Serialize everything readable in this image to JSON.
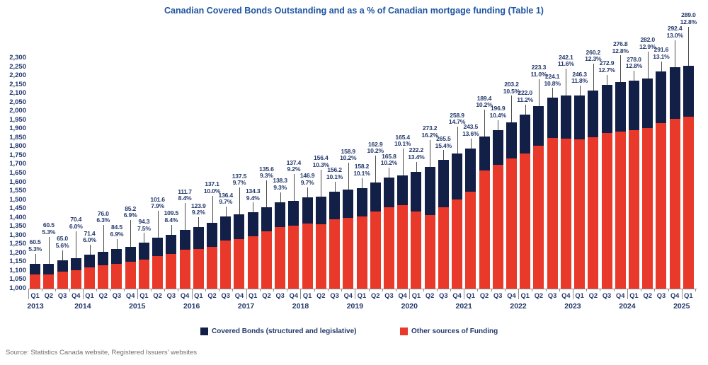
{
  "source": "Source: Statistics Canada website, Registered Issuers' websites",
  "chart_data": {
    "type": "bar",
    "stacked": true,
    "title": "Canadian Covered Bonds Outstanding and as a % of Canadian mortgage funding (Table 1)",
    "ylabel": "",
    "xlabel": "",
    "ylim": [
      1000,
      2300
    ],
    "y_step": 50,
    "grid": false,
    "legend_position": "bottom",
    "label_format": "covered_bonds_value over percent_of_mortgage_funding",
    "series": [
      {
        "name": "Covered Bonds (structured and legislative)",
        "color": "#121f47"
      },
      {
        "name": "Other sources of Funding",
        "color": "#e8392b"
      }
    ],
    "quarters": [
      {
        "year": 2013,
        "quarter": "Q1",
        "covered": 60.5,
        "pct": 5.3
      },
      {
        "year": 2013,
        "quarter": "Q2",
        "covered": 60.5,
        "pct": 5.3
      },
      {
        "year": 2013,
        "quarter": "Q3",
        "covered": 65.0,
        "pct": 5.6
      },
      {
        "year": 2013,
        "quarter": "Q4",
        "covered": 70.4,
        "pct": 6.0
      },
      {
        "year": 2014,
        "quarter": "Q1",
        "covered": 71.4,
        "pct": 6.0
      },
      {
        "year": 2014,
        "quarter": "Q2",
        "covered": 76.0,
        "pct": 6.3
      },
      {
        "year": 2014,
        "quarter": "Q3",
        "covered": 84.5,
        "pct": 6.9
      },
      {
        "year": 2014,
        "quarter": "Q4",
        "covered": 85.2,
        "pct": 6.9
      },
      {
        "year": 2015,
        "quarter": "Q1",
        "covered": 94.3,
        "pct": 7.5
      },
      {
        "year": 2015,
        "quarter": "Q2",
        "covered": 101.6,
        "pct": 7.9
      },
      {
        "year": 2015,
        "quarter": "Q3",
        "covered": 109.5,
        "pct": 8.4
      },
      {
        "year": 2015,
        "quarter": "Q4",
        "covered": 111.7,
        "pct": 8.4
      },
      {
        "year": 2016,
        "quarter": "Q1",
        "covered": 123.9,
        "pct": 9.2
      },
      {
        "year": 2016,
        "quarter": "Q2",
        "covered": 137.1,
        "pct": 10.0
      },
      {
        "year": 2016,
        "quarter": "Q3",
        "covered": 136.4,
        "pct": 9.7
      },
      {
        "year": 2016,
        "quarter": "Q4",
        "covered": 137.5,
        "pct": 9.7
      },
      {
        "year": 2017,
        "quarter": "Q1",
        "covered": 134.3,
        "pct": 9.4
      },
      {
        "year": 2017,
        "quarter": "Q2",
        "covered": 135.6,
        "pct": 9.3
      },
      {
        "year": 2017,
        "quarter": "Q3",
        "covered": 138.3,
        "pct": 9.3
      },
      {
        "year": 2017,
        "quarter": "Q4",
        "covered": 137.4,
        "pct": 9.2
      },
      {
        "year": 2018,
        "quarter": "Q1",
        "covered": 146.9,
        "pct": 9.7
      },
      {
        "year": 2018,
        "quarter": "Q2",
        "covered": 156.4,
        "pct": 10.3
      },
      {
        "year": 2018,
        "quarter": "Q3",
        "covered": 156.2,
        "pct": 10.1
      },
      {
        "year": 2018,
        "quarter": "Q4",
        "covered": 158.9,
        "pct": 10.2
      },
      {
        "year": 2019,
        "quarter": "Q1",
        "covered": 158.2,
        "pct": 10.1
      },
      {
        "year": 2019,
        "quarter": "Q2",
        "covered": 162.9,
        "pct": 10.2
      },
      {
        "year": 2019,
        "quarter": "Q3",
        "covered": 165.8,
        "pct": 10.2
      },
      {
        "year": 2019,
        "quarter": "Q4",
        "covered": 165.4,
        "pct": 10.1
      },
      {
        "year": 2020,
        "quarter": "Q1",
        "covered": 222.2,
        "pct": 13.4
      },
      {
        "year": 2020,
        "quarter": "Q2",
        "covered": 273.2,
        "pct": 16.2
      },
      {
        "year": 2020,
        "quarter": "Q3",
        "covered": 265.5,
        "pct": 15.4
      },
      {
        "year": 2020,
        "quarter": "Q4",
        "covered": 258.9,
        "pct": 14.7
      },
      {
        "year": 2021,
        "quarter": "Q1",
        "covered": 243.5,
        "pct": 13.6
      },
      {
        "year": 2021,
        "quarter": "Q2",
        "covered": 189.4,
        "pct": 10.2
      },
      {
        "year": 2021,
        "quarter": "Q3",
        "covered": 196.9,
        "pct": 10.4
      },
      {
        "year": 2021,
        "quarter": "Q4",
        "covered": 203.2,
        "pct": 10.5
      },
      {
        "year": 2022,
        "quarter": "Q1",
        "covered": 222.0,
        "pct": 11.2
      },
      {
        "year": 2022,
        "quarter": "Q2",
        "covered": 223.3,
        "pct": 11.0
      },
      {
        "year": 2022,
        "quarter": "Q3",
        "covered": 224.1,
        "pct": 10.8
      },
      {
        "year": 2022,
        "quarter": "Q4",
        "covered": 242.1,
        "pct": 11.6
      },
      {
        "year": 2023,
        "quarter": "Q1",
        "covered": 246.3,
        "pct": 11.8
      },
      {
        "year": 2023,
        "quarter": "Q2",
        "covered": 260.2,
        "pct": 12.3
      },
      {
        "year": 2023,
        "quarter": "Q3",
        "covered": 272.9,
        "pct": 12.7
      },
      {
        "year": 2023,
        "quarter": "Q4",
        "covered": 276.8,
        "pct": 12.8
      },
      {
        "year": 2024,
        "quarter": "Q1",
        "covered": 278.0,
        "pct": 12.8
      },
      {
        "year": 2024,
        "quarter": "Q2",
        "covered": 282.0,
        "pct": 12.9
      },
      {
        "year": 2024,
        "quarter": "Q3",
        "covered": 291.6,
        "pct": 13.1
      },
      {
        "year": 2024,
        "quarter": "Q4",
        "covered": 292.4,
        "pct": 13.0
      },
      {
        "year": 2025,
        "quarter": "Q1",
        "covered": 289.0,
        "pct": 12.8
      }
    ]
  }
}
